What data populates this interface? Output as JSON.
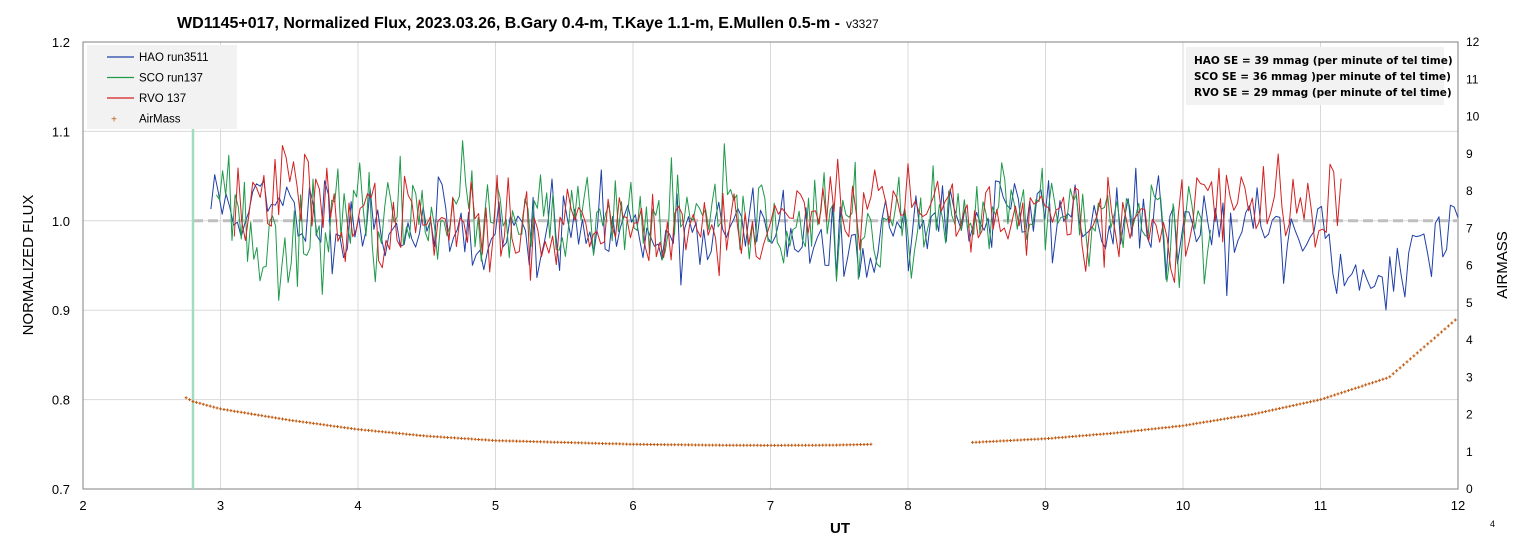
{
  "chart_data": {
    "type": "line",
    "title": "WD1145+017, Normalized Flux, 2023.03.26, B.Gary 0.4-m, T.Kaye 1.1-m, E.Mullen 0.5-m -",
    "title_version": "v3327",
    "xlabel": "UT",
    "ylabel": "NORMALIZED FLUX",
    "y2label": "AIRMASS",
    "xlim": [
      2,
      12
    ],
    "ylim": [
      0.7,
      1.2
    ],
    "y2lim": [
      0,
      12
    ],
    "x_ticks": [
      "2",
      "3",
      "4",
      "5",
      "6",
      "7",
      "8",
      "9",
      "10",
      "11",
      "12"
    ],
    "y_ticks": [
      "0.7",
      "0.8",
      "0.9",
      "1.0",
      "1.1",
      "1.2"
    ],
    "y2_ticks": [
      "0",
      "1",
      "2",
      "3",
      "4",
      "5",
      "6",
      "7",
      "8",
      "9",
      "10",
      "11",
      "12"
    ],
    "grid": true,
    "legend_position": "top-left",
    "reference_line": {
      "y": 1.0,
      "color": "#bfbfbf"
    },
    "marker_line": {
      "x": 2.8,
      "color": "#9fdcc0"
    },
    "series": [
      {
        "name": "HAO run3511",
        "color": "#1f3fa8",
        "range": [
          2.93,
          12.0
        ],
        "n": 330,
        "std": 0.025,
        "seed": 11,
        "points": [
          [
            2.93,
            1.02
          ],
          [
            3.5,
            1.01
          ],
          [
            4.0,
            1.0
          ],
          [
            5.0,
            0.985
          ],
          [
            6.0,
            0.99
          ],
          [
            7.0,
            0.99
          ],
          [
            7.5,
            0.96
          ],
          [
            8.0,
            1.0
          ],
          [
            9.0,
            1.01
          ],
          [
            10.0,
            0.99
          ],
          [
            11.0,
            0.98
          ],
          [
            11.3,
            0.93
          ],
          [
            12.0,
            0.99
          ]
        ]
      },
      {
        "name": "SCO run137",
        "color": "#1e9a4a",
        "range": [
          2.97,
          10.2
        ],
        "n": 320,
        "std": 0.028,
        "seed": 23,
        "points": [
          [
            2.97,
            1.06
          ],
          [
            3.3,
            0.96
          ],
          [
            3.6,
            0.99
          ],
          [
            4.0,
            1.0
          ],
          [
            4.78,
            1.02
          ],
          [
            5.0,
            0.99
          ],
          [
            6.0,
            1.0
          ],
          [
            7.0,
            1.0
          ],
          [
            8.0,
            0.99
          ],
          [
            9.0,
            1.01
          ],
          [
            10.0,
            1.0
          ],
          [
            10.2,
            1.0
          ]
        ]
      },
      {
        "name": "RVO 137",
        "color": "#d42020",
        "range": [
          3.1,
          11.15
        ],
        "n": 300,
        "std": 0.025,
        "seed": 37,
        "points": [
          [
            3.1,
            1.01
          ],
          [
            3.5,
            1.04
          ],
          [
            4.0,
            1.0
          ],
          [
            5.0,
            0.99
          ],
          [
            6.0,
            1.0
          ],
          [
            7.0,
            0.99
          ],
          [
            7.5,
            1.03
          ],
          [
            8.0,
            1.02
          ],
          [
            9.0,
            1.0
          ],
          [
            10.0,
            0.99
          ],
          [
            10.2,
            1.02
          ],
          [
            11.15,
            1.01
          ]
        ]
      },
      {
        "name": "AirMass",
        "color": "#c05a10",
        "marker": "+",
        "axis": "y2",
        "segments": [
          [
            2.75,
            7.73
          ],
          [
            8.47,
            11.98
          ]
        ],
        "points": [
          [
            2.75,
            2.45
          ],
          [
            2.8,
            2.35
          ],
          [
            3.0,
            2.15
          ],
          [
            3.5,
            1.85
          ],
          [
            4.0,
            1.6
          ],
          [
            4.5,
            1.42
          ],
          [
            5.0,
            1.3
          ],
          [
            5.5,
            1.25
          ],
          [
            6.0,
            1.2
          ],
          [
            6.5,
            1.18
          ],
          [
            7.0,
            1.17
          ],
          [
            7.5,
            1.18
          ],
          [
            7.73,
            1.2
          ],
          [
            8.47,
            1.25
          ],
          [
            9.0,
            1.35
          ],
          [
            9.5,
            1.5
          ],
          [
            10.0,
            1.7
          ],
          [
            10.5,
            2.0
          ],
          [
            11.0,
            2.4
          ],
          [
            11.5,
            3.0
          ],
          [
            12.0,
            4.6
          ]
        ]
      }
    ],
    "annotation": {
      "position": "top-right",
      "lines": [
        "HAO SE = 39 mmag (per minute of tel time)",
        "SCO SE =  36 mmag )per minute of tel time)",
        "RVO SE = 29 mmag (per minute of tel time)"
      ]
    }
  },
  "page_number": "4"
}
